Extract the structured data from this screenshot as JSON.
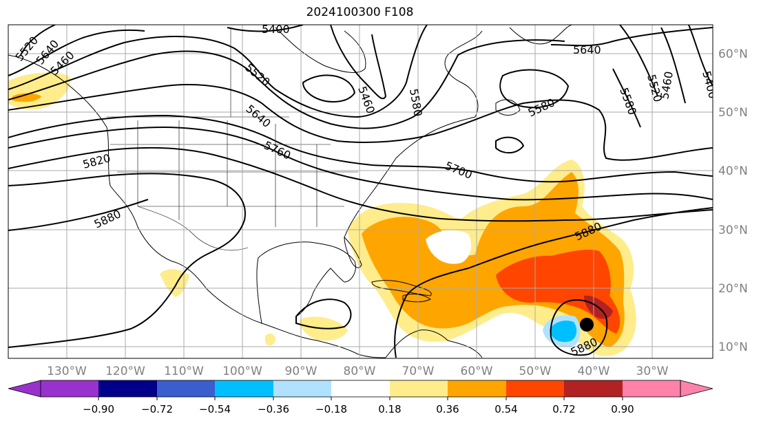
{
  "title": "2024100300 F108",
  "map": {
    "lon_labels": [
      "130°W",
      "120°W",
      "110°W",
      "100°W",
      "90°W",
      "80°W",
      "70°W",
      "60°W",
      "50°W",
      "40°W",
      "30°W"
    ],
    "lat_labels": [
      "60°N",
      "50°N",
      "40°N",
      "30°N",
      "20°N",
      "10°N"
    ],
    "contour_labels": [
      "5400",
      "5460",
      "5520",
      "5580",
      "5640",
      "5700",
      "5760",
      "5820",
      "5880"
    ],
    "label_instances": [
      {
        "text": "5400"
      },
      {
        "text": "5460"
      },
      {
        "text": "5520"
      },
      {
        "text": "5640"
      },
      {
        "text": "5580"
      },
      {
        "text": "5640"
      },
      {
        "text": "5520"
      },
      {
        "text": "5460"
      },
      {
        "text": "5400"
      },
      {
        "text": "5580"
      },
      {
        "text": "5580"
      },
      {
        "text": "5460"
      },
      {
        "text": "5520"
      },
      {
        "text": "5640"
      },
      {
        "text": "5760"
      },
      {
        "text": "5700"
      },
      {
        "text": "5820"
      },
      {
        "text": "5880"
      },
      {
        "text": "5880"
      },
      {
        "text": "5880"
      },
      {
        "text": "5640"
      },
      {
        "text": "5460"
      }
    ],
    "storm_marker": "black-dot"
  },
  "colorbar": {
    "tick_labels": [
      "−0.90",
      "−0.72",
      "−0.54",
      "−0.36",
      "−0.18",
      "0.18",
      "0.36",
      "0.54",
      "0.72",
      "0.90"
    ],
    "colors": [
      "#9932cc",
      "#00008b",
      "#3a5fcd",
      "#00bfff",
      "#b0e2ff",
      "#ffffff",
      "#ffec8b",
      "#ffa500",
      "#ff4500",
      "#b22222",
      "#ff82ab"
    ]
  }
}
